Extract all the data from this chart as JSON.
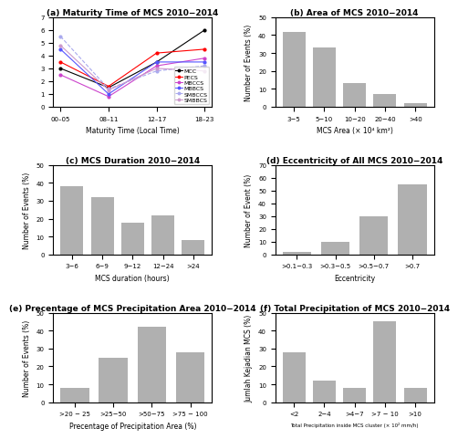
{
  "panel_a": {
    "title": "(a) Maturity Time of MCS 2010−2014",
    "xlabel": "Maturity Time (Local Time)",
    "ylabel": "Number of Events (%)",
    "xticks": [
      "00–05",
      "08–11",
      "12–17",
      "18–23"
    ],
    "series": {
      "MCC": {
        "values": [
          3.0,
          1.5,
          3.5,
          6.0
        ],
        "color": "black",
        "linestyle": "-",
        "marker": "o"
      },
      "PECS": {
        "values": [
          3.5,
          1.6,
          4.2,
          4.5
        ],
        "color": "red",
        "linestyle": "-",
        "marker": "o"
      },
      "MBCCS": {
        "values": [
          2.5,
          0.8,
          3.2,
          3.8
        ],
        "color": "#cc44cc",
        "linestyle": "-",
        "marker": "o"
      },
      "MBBCS": {
        "values": [
          4.5,
          1.0,
          3.5,
          3.5
        ],
        "color": "#5555ff",
        "linestyle": "-",
        "marker": "o"
      },
      "SMBCCS": {
        "values": [
          5.5,
          1.4,
          2.8,
          3.2
        ],
        "color": "#aaaaee",
        "linestyle": "--",
        "marker": "o"
      },
      "SMBBCS": {
        "values": [
          4.8,
          1.3,
          3.0,
          2.8
        ],
        "color": "#cc99cc",
        "linestyle": "-",
        "marker": "o"
      }
    },
    "ylim": [
      0,
      7
    ]
  },
  "panel_b": {
    "title": "(b) Area of MCS 2010−2014",
    "xlabel": "MCS Area (× 10⁴ km²)",
    "ylabel": "Number of Events (%)",
    "categories": [
      "3−5",
      "5−10",
      "10−20",
      "20−40",
      ">40"
    ],
    "values": [
      42,
      33,
      13,
      7,
      2
    ],
    "bar_color": "#b0b0b0",
    "ylim_max": 50,
    "yticks": [
      0,
      10,
      20,
      30,
      40,
      50
    ]
  },
  "panel_c": {
    "title": "(c) MCS Duration 2010−2014",
    "xlabel": "MCS duration (hours)",
    "ylabel": "Number of Events (%)",
    "categories": [
      "3−6",
      "6−9",
      "9−12",
      "12−24",
      ">24"
    ],
    "values": [
      38,
      32,
      18,
      22,
      8
    ],
    "bar_color": "#b0b0b0",
    "ylim_max": 50,
    "yticks": [
      0,
      10,
      20,
      30,
      40,
      50
    ]
  },
  "panel_d": {
    "title": "(d) Eccentricity of All MCS 2010−2014",
    "xlabel": "Eccentricity",
    "ylabel": "Number of Event (%)",
    "cat_list": [
      ">0.1−0.3",
      ">0.3−0.5",
      ">0.5−0.7",
      ">0.7"
    ],
    "values": [
      2,
      10,
      30,
      55
    ],
    "bar_color": "#b0b0b0",
    "ylim_max": 70,
    "yticks": [
      0,
      10,
      20,
      30,
      40,
      50,
      60,
      70
    ]
  },
  "panel_e": {
    "title": "(e) Precentage of MCS Precipitation Area 2010−2014",
    "xlabel": "Precentage of Precipitation Area (%)",
    "ylabel": "Number of Events (%)",
    "categories": [
      ">20 − 25",
      ">25−50",
      ">50−75",
      ">75 − 100"
    ],
    "values": [
      8,
      25,
      42,
      28
    ],
    "bar_color": "#b0b0b0",
    "ylim_max": 50,
    "yticks": [
      0,
      10,
      20,
      30,
      40,
      50
    ]
  },
  "panel_f": {
    "title": "(f) Total Precipitation of MCS 2010−2014",
    "xlabel": "Total Precipitation inside MCS cluster (× 10² mm/h)",
    "ylabel": "Jumlah Kejadian MCS (%)",
    "categories": [
      "<2",
      "2−4",
      ">4−7",
      ">7 − 10",
      ">10"
    ],
    "values": [
      28,
      12,
      8,
      45,
      8
    ],
    "bar_color": "#b0b0b0",
    "ylim_max": 50,
    "yticks": [
      0,
      10,
      20,
      30,
      40,
      50
    ]
  },
  "bg_color": "white",
  "font_size_title": 6.5,
  "font_size_label": 5.5,
  "font_size_tick": 5.0,
  "legend_fontsize": 4.5
}
